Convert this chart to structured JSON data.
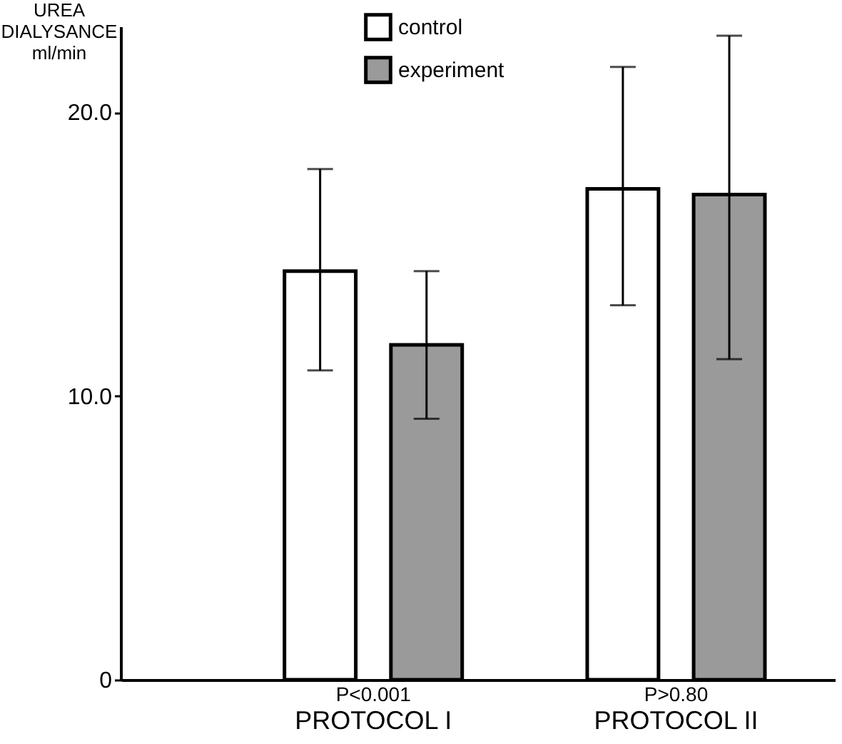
{
  "chart_data": {
    "type": "bar",
    "categories": [
      "PROTOCOL I",
      "PROTOCOL II"
    ],
    "series": [
      {
        "name": "control",
        "color": "#ffffff",
        "values": [
          14.4,
          17.3
        ],
        "errors": [
          [
            10.9,
            18.0
          ],
          [
            13.2,
            21.6
          ]
        ]
      },
      {
        "name": "experiment",
        "color": "#9a9a9a",
        "values": [
          11.8,
          17.1
        ],
        "errors": [
          [
            9.2,
            14.4
          ],
          [
            11.3,
            22.7
          ]
        ]
      }
    ],
    "ylabel": "UREA DIALYSANCE ml/min",
    "ylim": [
      0,
      23
    ],
    "yticks": [
      {
        "value": 0,
        "label": "0"
      },
      {
        "value": 10,
        "label": "10.0"
      },
      {
        "value": 20,
        "label": "20.0"
      }
    ],
    "annotations": [
      "P<0.001",
      "P>0.80"
    ],
    "legend": "top",
    "grid": false
  }
}
